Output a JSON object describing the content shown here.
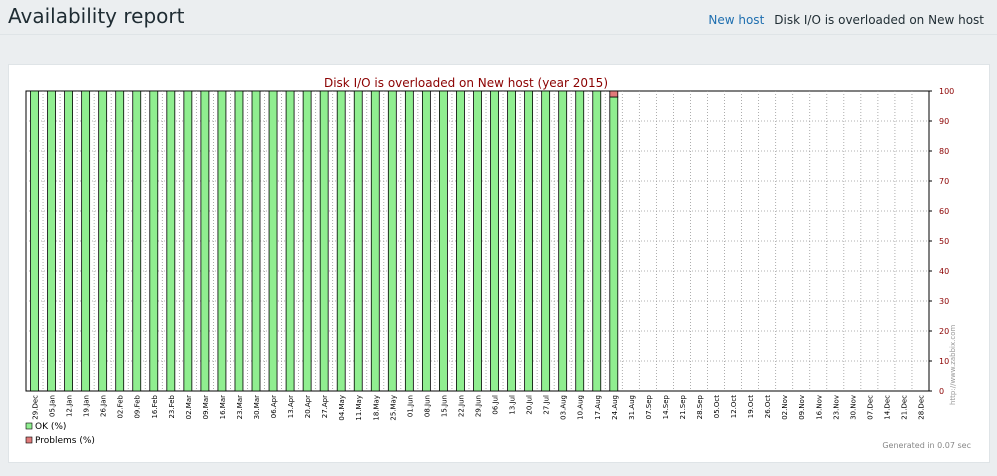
{
  "header": {
    "title": "Availability report",
    "host_link": "New host",
    "trigger_name": "Disk I/O is overloaded on New host"
  },
  "chart_data": {
    "type": "bar",
    "title": "Disk I/O is overloaded on New host (year 2015)",
    "categories": [
      "29.Dec",
      "05.Jan",
      "12.Jan",
      "19.Jan",
      "26.Jan",
      "02.Feb",
      "09.Feb",
      "16.Feb",
      "23.Feb",
      "02.Mar",
      "09.Mar",
      "16.Mar",
      "23.Mar",
      "30.Mar",
      "06.Apr",
      "13.Apr",
      "20.Apr",
      "27.Apr",
      "04.May",
      "11.May",
      "18.May",
      "25.May",
      "01.Jun",
      "08.Jun",
      "15.Jun",
      "22.Jun",
      "29.Jun",
      "06.Jul",
      "13.Jul",
      "20.Jul",
      "27.Jul",
      "03.Aug",
      "10.Aug",
      "17.Aug",
      "24.Aug",
      "31.Aug",
      "07.Sep",
      "14.Sep",
      "21.Sep",
      "28.Sep",
      "05.Oct",
      "12.Oct",
      "19.Oct",
      "26.Oct",
      "02.Nov",
      "09.Nov",
      "16.Nov",
      "23.Nov",
      "30.Nov",
      "07.Dec",
      "14.Dec",
      "21.Dec",
      "28.Dec"
    ],
    "series": [
      {
        "name": "OK (%)",
        "color": "#90ee90",
        "values": [
          100,
          100,
          100,
          100,
          100,
          100,
          100,
          100,
          100,
          100,
          100,
          100,
          100,
          100,
          100,
          100,
          100,
          100,
          100,
          100,
          100,
          100,
          100,
          100,
          100,
          100,
          100,
          100,
          100,
          100,
          100,
          100,
          100,
          100,
          98,
          null,
          null,
          null,
          null,
          null,
          null,
          null,
          null,
          null,
          null,
          null,
          null,
          null,
          null,
          null,
          null,
          null,
          null
        ]
      },
      {
        "name": "Problems (%)",
        "color": "#e07a7a",
        "values": [
          0,
          0,
          0,
          0,
          0,
          0,
          0,
          0,
          0,
          0,
          0,
          0,
          0,
          0,
          0,
          0,
          0,
          0,
          0,
          0,
          0,
          0,
          0,
          0,
          0,
          0,
          0,
          0,
          0,
          0,
          0,
          0,
          0,
          0,
          2,
          null,
          null,
          null,
          null,
          null,
          null,
          null,
          null,
          null,
          null,
          null,
          null,
          null,
          null,
          null,
          null,
          null,
          null
        ]
      }
    ],
    "y_ticks": [
      "0",
      "10",
      "20",
      "30",
      "40",
      "50",
      "60",
      "70",
      "80",
      "90",
      "100"
    ],
    "ylim": [
      0,
      100
    ],
    "grid": true,
    "legend_position": "bottom-left",
    "watermark": "http://www.zabbix.com",
    "footer_note": "Generated in 0.07 sec",
    "title_color": "#8b0000",
    "axis_label_color": "#8b0000"
  }
}
